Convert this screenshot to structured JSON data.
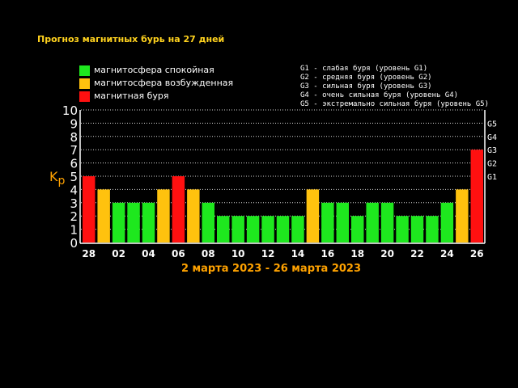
{
  "title": "Прогноз магнитных бурь на 27 дней",
  "legend": [
    {
      "label": "магнитосфера спокойная",
      "color": "#1ee81e"
    },
    {
      "label": "магнитосфера возбужденная",
      "color": "#ffc20e"
    },
    {
      "label": "магнитная буря",
      "color": "#ff1010"
    }
  ],
  "storm_levels": [
    "G1 - слабая буря (уровень G1)",
    "G2 - средняя буря (уровень G2)",
    "G3 - сильная буря (уровень G3)",
    "G4 - очень сильная буря (уровень G4)",
    "G5 - экстремально сильная буря (уровень G5)"
  ],
  "chart_data": {
    "type": "bar",
    "title": "Прогноз магнитных бурь на 27 дней",
    "xlabel": "2 марта 2023 - 26 марта 2023",
    "ylabel": "Kp",
    "ylim": [
      0,
      10
    ],
    "yticks": [
      "0",
      "1",
      "2",
      "3",
      "4",
      "5",
      "6",
      "7",
      "8",
      "9",
      "10"
    ],
    "right_ticks": [
      {
        "label": "G1",
        "value": 5
      },
      {
        "label": "G2",
        "value": 6
      },
      {
        "label": "G3",
        "value": 7
      },
      {
        "label": "G4",
        "value": 8
      },
      {
        "label": "G5",
        "value": 9
      }
    ],
    "x_tick_labels": [
      "28",
      "02",
      "04",
      "06",
      "08",
      "10",
      "12",
      "14",
      "16",
      "18",
      "20",
      "22",
      "24",
      "26"
    ],
    "values": [
      5,
      4,
      3,
      3,
      3,
      4,
      5,
      4,
      3,
      2,
      2,
      2,
      2,
      2,
      2,
      4,
      3,
      3,
      2,
      3,
      3,
      2,
      2,
      2,
      3,
      4,
      7
    ],
    "colors": {
      "quiet": "#1ee81e",
      "active": "#ffc20e",
      "storm": "#ff1010"
    },
    "grid": true
  }
}
